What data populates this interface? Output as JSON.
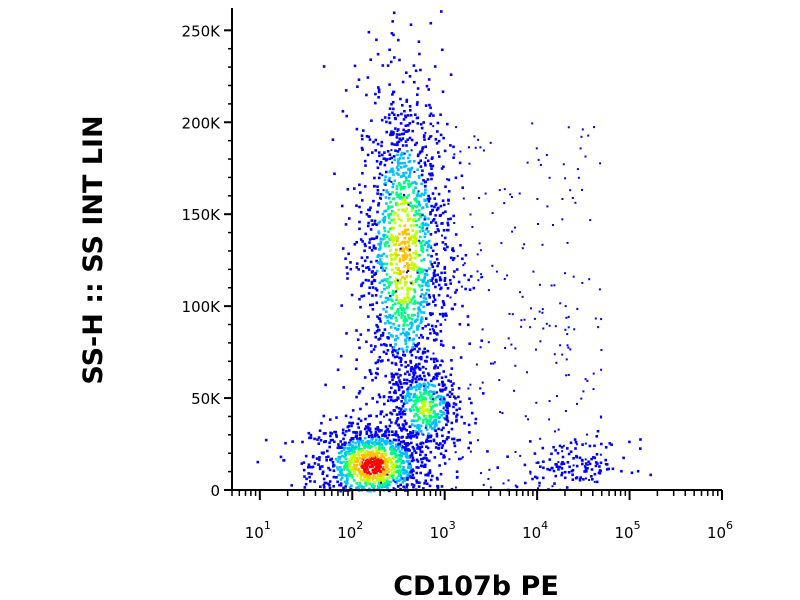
{
  "chart_data": {
    "type": "scatter",
    "subtype": "flow-cytometry-density-dot-plot",
    "xlabel": "CD107b PE",
    "ylabel": "SS-H :: SS INT LIN",
    "x_scale": "log",
    "y_scale": "linear",
    "xlim": [
      5,
      1000000
    ],
    "ylim": [
      0,
      262144
    ],
    "x_ticks": [
      {
        "value": 10,
        "base": "10",
        "exp": "1"
      },
      {
        "value": 100,
        "base": "10",
        "exp": "2"
      },
      {
        "value": 1000,
        "base": "10",
        "exp": "3"
      },
      {
        "value": 10000,
        "base": "10",
        "exp": "4"
      },
      {
        "value": 100000,
        "base": "10",
        "exp": "5"
      },
      {
        "value": 1000000,
        "base": "10",
        "exp": "6"
      }
    ],
    "y_ticks": [
      {
        "value": 0,
        "label": "0"
      },
      {
        "value": 50000,
        "label": "50K"
      },
      {
        "value": 100000,
        "label": "100K"
      },
      {
        "value": 150000,
        "label": "150K"
      },
      {
        "value": 200000,
        "label": "200K"
      },
      {
        "value": 250000,
        "label": "250K"
      }
    ],
    "grid": false,
    "legend": "none",
    "color_scale": [
      "#0000ff",
      "#00c0ff",
      "#00ff80",
      "#c0ff00",
      "#ffc000",
      "#ff0000"
    ],
    "populations": [
      {
        "x_center": 160,
        "y_center": 14000,
        "x_spread_log": 0.22,
        "y_spread": 8000,
        "peak_density": 1.0
      },
      {
        "x_center": 350,
        "y_center": 130000,
        "x_spread_log": 0.17,
        "y_spread": 32000,
        "peak_density": 0.75
      },
      {
        "x_center": 600,
        "y_center": 45000,
        "x_spread_log": 0.14,
        "y_spread": 9000,
        "peak_density": 0.55
      },
      {
        "x_center": 25000,
        "y_center": 14000,
        "x_spread_log": 0.2,
        "y_spread": 4500,
        "peak_density": 0.15
      }
    ]
  }
}
